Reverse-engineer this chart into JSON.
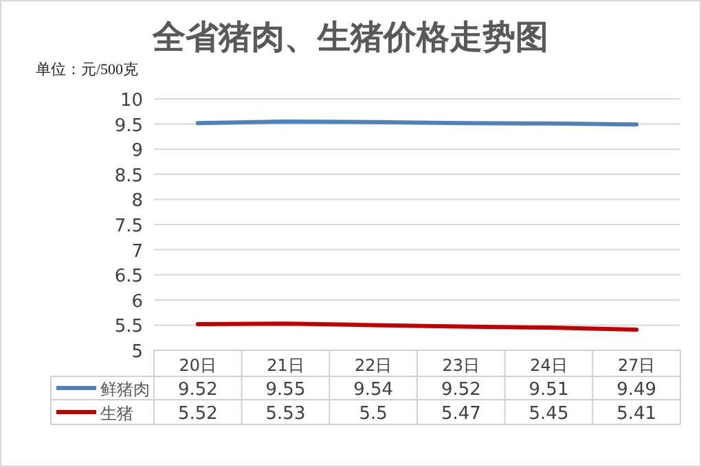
{
  "chart_data": {
    "type": "line",
    "title": "全省猪肉、生猪价格走势图",
    "ylabel": "单位：元/500克",
    "categories": [
      "20日",
      "21日",
      "22日",
      "23日",
      "24日",
      "27日"
    ],
    "series": [
      {
        "name": "鲜猪肉",
        "color": "#4f81bd",
        "values": [
          9.52,
          9.55,
          9.54,
          9.52,
          9.51,
          9.49
        ]
      },
      {
        "name": "生猪",
        "color": "#c00000",
        "values": [
          5.52,
          5.53,
          5.5,
          5.47,
          5.45,
          5.41
        ]
      }
    ],
    "ylim": [
      5,
      10
    ],
    "yticks": [
      5,
      5.5,
      6,
      6.5,
      7,
      7.5,
      8,
      8.5,
      9,
      9.5,
      10
    ],
    "grid": "y",
    "data_labels": true,
    "legend": "bottom",
    "marker": "none",
    "line_style": "solid"
  }
}
